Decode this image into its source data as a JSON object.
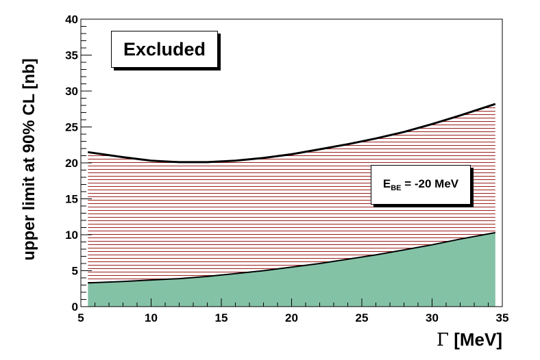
{
  "chart_data": {
    "type": "area",
    "xlabel": "[MeV]",
    "xlabel_symbol": "Γ",
    "ylabel": "upper limit at 90% CL [nb]",
    "xlim": [
      5,
      35
    ],
    "ylim": [
      0,
      40
    ],
    "xticks": [
      5,
      10,
      15,
      20,
      25,
      30,
      35
    ],
    "yticks": [
      0,
      5,
      10,
      15,
      20,
      25,
      30,
      35,
      40
    ],
    "x_tick_labels": [
      "5",
      "10",
      "15",
      "20",
      "25",
      "30",
      "35"
    ],
    "y_tick_labels": [
      "0",
      "5",
      "10",
      "15",
      "20",
      "25",
      "30",
      "35",
      "40"
    ],
    "x": [
      5.5,
      8,
      10,
      12,
      14,
      16,
      18,
      20,
      22,
      24,
      26,
      28,
      30,
      32,
      34.5
    ],
    "series": [
      {
        "role": "upper limit curve (hatched band)",
        "values": [
          21.5,
          20.8,
          20.3,
          20.1,
          20.1,
          20.3,
          20.7,
          21.2,
          21.9,
          22.6,
          23.4,
          24.3,
          25.4,
          26.6,
          28.2
        ]
      },
      {
        "role": "lower curve (filled region)",
        "values": [
          3.3,
          3.5,
          3.7,
          3.9,
          4.2,
          4.6,
          5.0,
          5.5,
          6.0,
          6.6,
          7.2,
          7.9,
          8.6,
          9.4,
          10.3
        ]
      }
    ],
    "grid": false,
    "colors": {
      "fill": "#84c2a6",
      "hatch": "#9b1c1c",
      "curve": "#000000"
    },
    "annotations": {
      "region_label": "Excluded",
      "binding_energy": {
        "prefix": "E",
        "subscript": "BE",
        "text": " = -20 MeV"
      }
    }
  }
}
